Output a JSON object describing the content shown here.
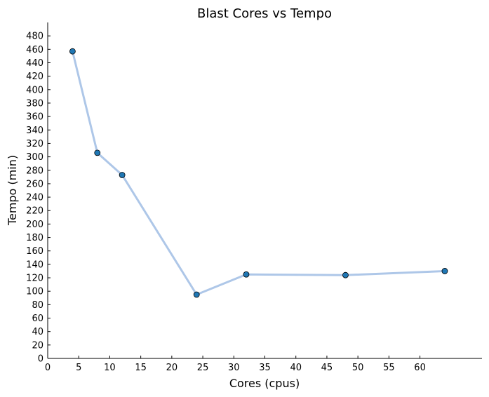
{
  "chart_data": {
    "type": "line",
    "title": "Blast Cores vs Tempo",
    "xlabel": "Cores (cpus)",
    "ylabel": "Tempo (min)",
    "xlim": [
      0,
      70
    ],
    "ylim": [
      0,
      500
    ],
    "xticks": [
      0,
      5,
      10,
      15,
      20,
      25,
      30,
      35,
      40,
      45,
      50,
      55,
      60
    ],
    "yticks": [
      0,
      20,
      40,
      60,
      80,
      100,
      120,
      140,
      160,
      180,
      200,
      220,
      240,
      260,
      280,
      300,
      320,
      340,
      360,
      380,
      400,
      420,
      440,
      460,
      480
    ],
    "series": [
      {
        "x": [
          4,
          8,
          12,
          24,
          32,
          48,
          64
        ],
        "values": [
          457,
          306,
          273,
          95,
          125,
          124,
          130
        ]
      }
    ],
    "grid": false,
    "colors": {
      "line": "#aec7e8",
      "marker_fill": "#1f77b4",
      "marker_edge": "#000000"
    }
  }
}
